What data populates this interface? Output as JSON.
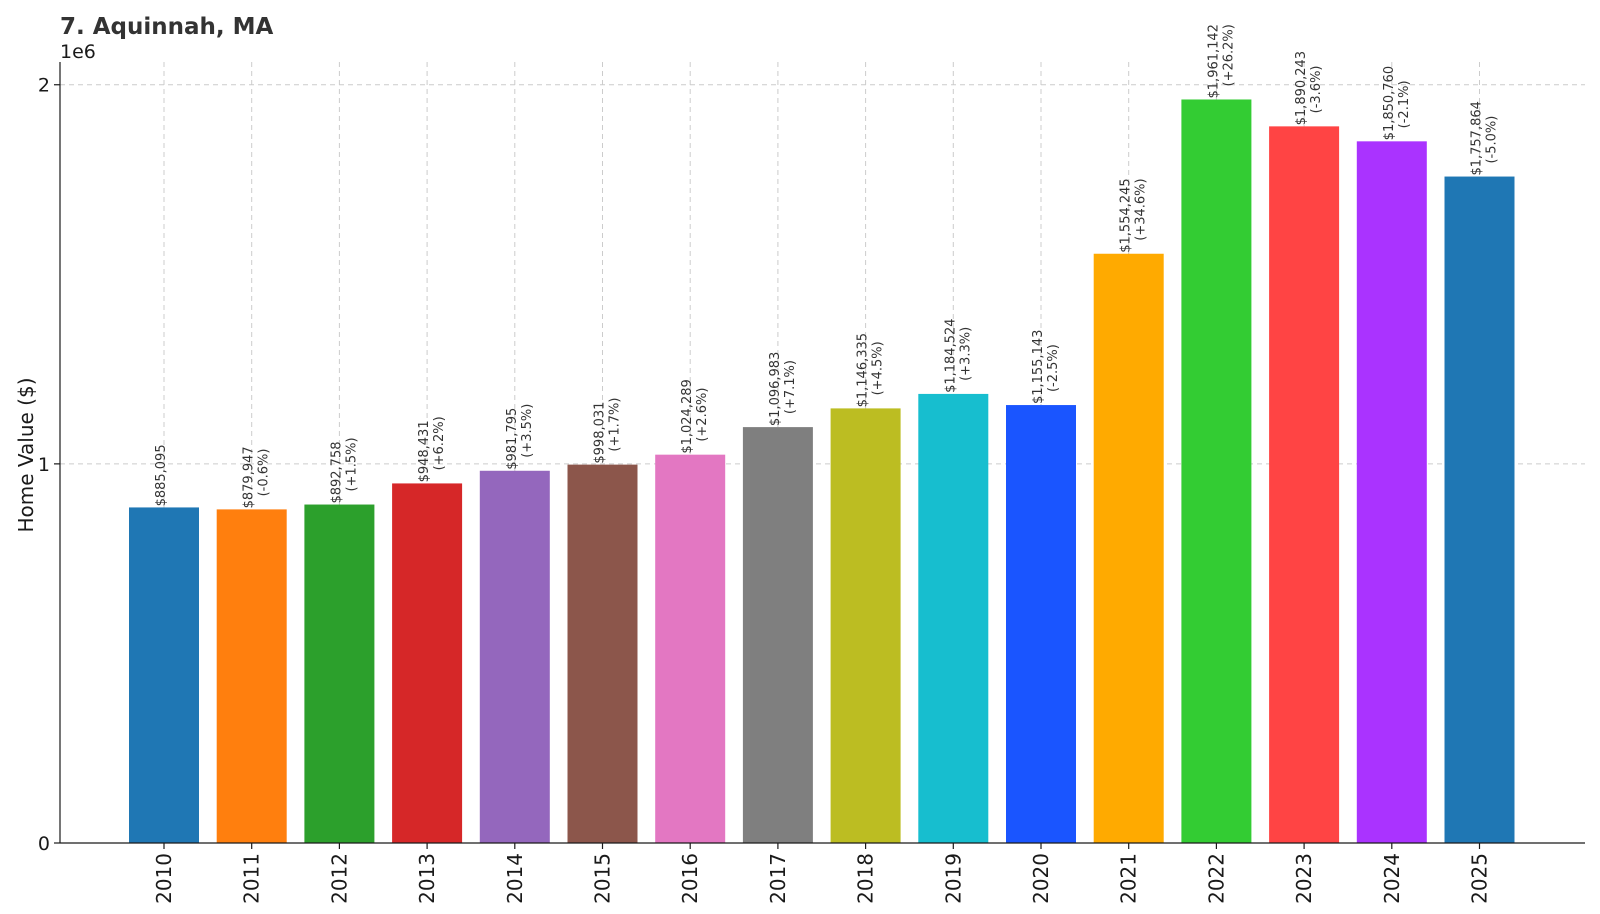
{
  "chart_data": {
    "type": "bar",
    "title": "7. Aquinnah, MA",
    "ylabel": "Home Value ($)",
    "xlabel": "",
    "offset_label": "1e6",
    "ylim": [
      0,
      2060000
    ],
    "yticks": [
      0,
      1000000,
      2000000
    ],
    "ytick_labels": [
      "0",
      "1",
      "2"
    ],
    "grid": true,
    "categories": [
      "2010",
      "2011",
      "2012",
      "2013",
      "2014",
      "2015",
      "2016",
      "2017",
      "2018",
      "2019",
      "2020",
      "2021",
      "2022",
      "2023",
      "2024",
      "2025"
    ],
    "values": [
      885095,
      879947,
      892758,
      948431,
      981795,
      998031,
      1024289,
      1096983,
      1146335,
      1184524,
      1155143,
      1554245,
      1961142,
      1890243,
      1850760,
      1757864
    ],
    "value_labels": [
      "$885,095",
      "$879,947",
      "$892,758",
      "$948,431",
      "$981,795",
      "$998,031",
      "$1,024,289",
      "$1,096,983",
      "$1,146,335",
      "$1,184,524",
      "$1,155,143",
      "$1,554,245",
      "$1,961,142",
      "$1,890,243",
      "$1,850,760",
      "$1,757,864"
    ],
    "change_labels": [
      "",
      "(-0.6%)",
      "(+1.5%)",
      "(+6.2%)",
      "(+3.5%)",
      "(+1.7%)",
      "(+2.6%)",
      "(+7.1%)",
      "(+4.5%)",
      "(+3.3%)",
      "(-2.5%)",
      "(+34.6%)",
      "(+26.2%)",
      "(-3.6%)",
      "(-2.1%)",
      "(-5.0%)"
    ],
    "colors": [
      "#1f77b4",
      "#ff7f0e",
      "#2ca02c",
      "#d62728",
      "#9467bd",
      "#8c564b",
      "#e377c2",
      "#7f7f7f",
      "#bcbd22",
      "#17becf",
      "#1a55ff",
      "#ffaa00",
      "#33cc33",
      "#ff4444",
      "#aa33ff",
      "#1f77b4"
    ]
  }
}
